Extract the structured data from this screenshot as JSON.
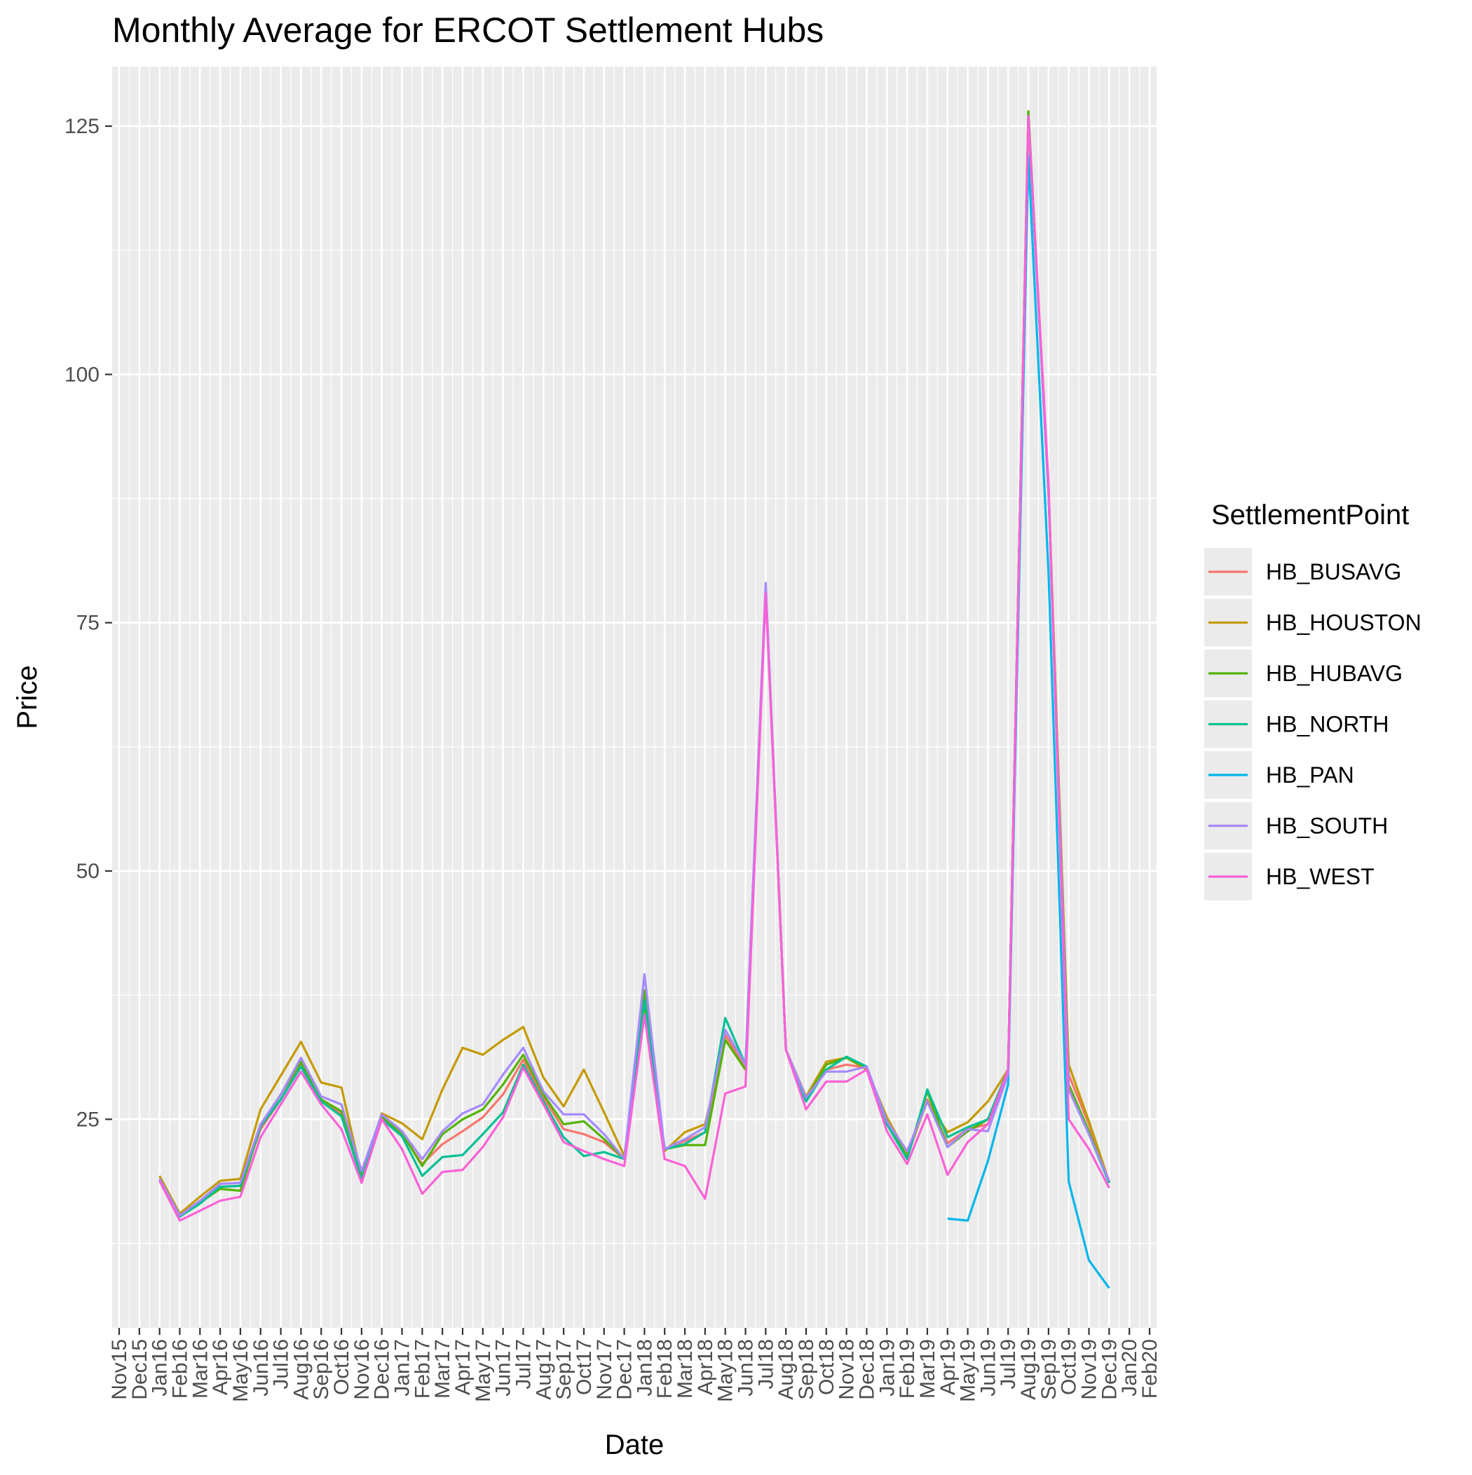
{
  "chart_data": {
    "type": "line",
    "title": "Monthly Average for ERCOT Settlement Hubs",
    "xlabel": "Date",
    "ylabel": "Price",
    "ylim": [
      4,
      131
    ],
    "y_ticks": [
      25,
      50,
      75,
      100,
      125
    ],
    "x_ticks": [
      "Nov15",
      "Dec15",
      "Jan16",
      "Feb16",
      "Mar16",
      "Apr16",
      "May16",
      "Jun16",
      "Jul16",
      "Aug16",
      "Sep16",
      "Oct16",
      "Nov16",
      "Dec16",
      "Jan17",
      "Feb17",
      "Mar17",
      "Apr17",
      "May17",
      "Jun17",
      "Jul17",
      "Aug17",
      "Sep17",
      "Oct17",
      "Nov17",
      "Dec17",
      "Jan18",
      "Feb18",
      "Mar18",
      "Apr18",
      "May18",
      "Jun18",
      "Jul18",
      "Aug18",
      "Sep18",
      "Oct18",
      "Nov18",
      "Dec18",
      "Jan19",
      "Feb19",
      "Mar19",
      "Apr19",
      "May19",
      "Jun19",
      "Jul19",
      "Aug19",
      "Sep19",
      "Oct19",
      "Nov19",
      "Dec19",
      "Jan20",
      "Feb20"
    ],
    "grid": true,
    "legend": {
      "title": "SettlementPoint",
      "position": "right"
    },
    "series": [
      {
        "name": "HB_BUSAVG",
        "color": "#F8766D",
        "x": [
          "Jan16",
          "Feb16",
          "Mar16",
          "Apr16",
          "May16",
          "Jun16",
          "Jul16",
          "Aug16",
          "Sep16",
          "Oct16",
          "Nov16",
          "Dec16",
          "Jan17",
          "Feb17",
          "Mar17",
          "Apr17",
          "May17",
          "Jun17",
          "Jul17",
          "Aug17",
          "Sep17",
          "Oct17",
          "Nov17",
          "Dec17",
          "Jan18",
          "Feb18",
          "Mar18",
          "Apr18",
          "May18",
          "Jun18",
          "Jul18",
          "Aug18",
          "Sep18",
          "Oct18",
          "Nov18",
          "Dec18",
          "Jan19",
          "Feb19",
          "Mar19",
          "Apr19",
          "May19",
          "Jun19",
          "Jul19",
          "Aug19",
          "Sep19",
          "Oct19",
          "Nov19",
          "Dec19"
        ],
        "values": [
          19.0,
          15.3,
          16.8,
          18.2,
          18.3,
          24.0,
          27.0,
          30.5,
          27.0,
          25.5,
          19.0,
          25.3,
          23.5,
          20.5,
          22.5,
          23.8,
          25.2,
          27.5,
          31.0,
          27.2,
          24.0,
          23.5,
          22.7,
          21.0,
          37.5,
          22.0,
          22.8,
          23.7,
          33.5,
          30.2,
          78.5,
          32.0,
          27.0,
          30.0,
          30.5,
          30.2,
          24.5,
          21.2,
          27.0,
          22.6,
          24.0,
          24.5,
          30.0,
          126.0,
          88.0,
          29.5,
          24.5,
          18.6
        ]
      },
      {
        "name": "HB_HOUSTON",
        "color": "#C49A00",
        "x": [
          "Jan16",
          "Feb16",
          "Mar16",
          "Apr16",
          "May16",
          "Jun16",
          "Jul16",
          "Aug16",
          "Sep16",
          "Oct16",
          "Nov16",
          "Dec16",
          "Jan17",
          "Feb17",
          "Mar17",
          "Apr17",
          "May17",
          "Jun17",
          "Jul17",
          "Aug17",
          "Sep17",
          "Oct17",
          "Nov17",
          "Dec17",
          "Jan18",
          "Feb18",
          "Mar18",
          "Apr18",
          "May18",
          "Jun18",
          "Jul18",
          "Aug18",
          "Sep18",
          "Oct18",
          "Nov18",
          "Dec18",
          "Jan19",
          "Feb19",
          "Mar19",
          "Apr19",
          "May19",
          "Jun19",
          "Jul19",
          "Aug19",
          "Sep19",
          "Oct19",
          "Nov19",
          "Dec19"
        ],
        "values": [
          19.3,
          15.5,
          17.2,
          18.8,
          19.0,
          26.0,
          29.4,
          32.8,
          28.7,
          28.2,
          19.3,
          25.6,
          24.6,
          23.0,
          28.0,
          32.2,
          31.5,
          33.0,
          34.3,
          29.2,
          26.3,
          30.0,
          25.7,
          21.3,
          36.0,
          21.8,
          23.7,
          24.5,
          33.0,
          30.0,
          78.5,
          32.0,
          27.3,
          30.8,
          31.2,
          30.0,
          25.2,
          21.5,
          26.8,
          23.7,
          24.7,
          26.8,
          30.0,
          126.0,
          88.5,
          30.5,
          24.8,
          18.7
        ]
      },
      {
        "name": "HB_HUBAVG",
        "color": "#53B400",
        "x": [
          "Jan16",
          "Feb16",
          "Mar16",
          "Apr16",
          "May16",
          "Jun16",
          "Jul16",
          "Aug16",
          "Sep16",
          "Oct16",
          "Nov16",
          "Dec16",
          "Jan17",
          "Feb17",
          "Mar17",
          "Apr17",
          "May17",
          "Jun17",
          "Jul17",
          "Aug17",
          "Sep17",
          "Oct17",
          "Nov17",
          "Dec17",
          "Jan18",
          "Feb18",
          "Mar18",
          "Apr18",
          "May18",
          "Jun18",
          "Jul18",
          "Aug18",
          "Sep18",
          "Oct18",
          "Nov18",
          "Dec18",
          "Jan19",
          "Feb19",
          "Mar19",
          "Apr19",
          "May19",
          "Jun19",
          "Jul19",
          "Aug19",
          "Sep19",
          "Oct19",
          "Nov19",
          "Dec19"
        ],
        "values": [
          19.0,
          15.3,
          16.6,
          18.0,
          17.8,
          24.3,
          27.5,
          30.8,
          27.0,
          25.8,
          19.3,
          25.3,
          23.6,
          20.3,
          23.5,
          25.0,
          26.0,
          28.5,
          31.5,
          27.5,
          24.5,
          24.8,
          23.0,
          21.0,
          38.0,
          22.0,
          22.4,
          22.4,
          33.0,
          30.0,
          78.5,
          32.0,
          27.0,
          30.5,
          31.2,
          30.2,
          24.8,
          21.2,
          27.8,
          22.2,
          23.8,
          25.0,
          30.0,
          126.5,
          88.0,
          28.5,
          23.8,
          18.6
        ]
      },
      {
        "name": "HB_NORTH",
        "color": "#00C094",
        "x": [
          "Jan16",
          "Feb16",
          "Mar16",
          "Apr16",
          "May16",
          "Jun16",
          "Jul16",
          "Aug16",
          "Sep16",
          "Oct16",
          "Nov16",
          "Dec16",
          "Jan17",
          "Feb17",
          "Mar17",
          "Apr17",
          "May17",
          "Jun17",
          "Jul17",
          "Aug17",
          "Sep17",
          "Oct17",
          "Nov17",
          "Dec17",
          "Jan18",
          "Feb18",
          "Mar18",
          "Apr18",
          "May18",
          "Jun18",
          "Jul18",
          "Aug18",
          "Sep18",
          "Oct18",
          "Nov18",
          "Dec18",
          "Jan19",
          "Feb19",
          "Mar19",
          "Apr19",
          "May19",
          "Jun19",
          "Jul19",
          "Aug19",
          "Sep19",
          "Oct19",
          "Nov19",
          "Dec19"
        ],
        "values": [
          19.0,
          15.2,
          16.5,
          18.2,
          18.3,
          24.3,
          27.0,
          30.3,
          26.8,
          25.3,
          19.0,
          25.0,
          23.3,
          19.3,
          21.2,
          21.4,
          23.5,
          25.7,
          30.5,
          26.8,
          23.2,
          21.3,
          21.7,
          21.0,
          37.0,
          22.0,
          22.5,
          23.7,
          35.2,
          30.5,
          78.5,
          32.0,
          26.8,
          30.0,
          31.3,
          30.3,
          24.5,
          21.0,
          28.0,
          23.2,
          24.2,
          25.0,
          30.0,
          126.0,
          88.0,
          28.0,
          23.5,
          18.6
        ]
      },
      {
        "name": "HB_PAN",
        "color": "#00B6EB",
        "x": [
          "Apr19",
          "May19",
          "Jun19",
          "Jul19",
          "Aug19",
          "Sep19",
          "Oct19",
          "Nov19",
          "Dec19"
        ],
        "values": [
          15.0,
          14.8,
          20.8,
          28.5,
          122.0,
          80.0,
          18.7,
          10.8,
          8.0
        ]
      },
      {
        "name": "HB_SOUTH",
        "color": "#A58AFF",
        "x": [
          "Jan16",
          "Feb16",
          "Mar16",
          "Apr16",
          "May16",
          "Jun16",
          "Jul16",
          "Aug16",
          "Sep16",
          "Oct16",
          "Nov16",
          "Dec16",
          "Jan17",
          "Feb17",
          "Mar17",
          "Apr17",
          "May17",
          "Jun17",
          "Jul17",
          "Aug17",
          "Sep17",
          "Oct17",
          "Nov17",
          "Dec17",
          "Jan18",
          "Feb18",
          "Mar18",
          "Apr18",
          "May18",
          "Jun18",
          "Jul18",
          "Aug18",
          "Sep18",
          "Oct18",
          "Nov18",
          "Dec18",
          "Jan19",
          "Feb19",
          "Mar19",
          "Apr19",
          "May19",
          "Jun19",
          "Jul19",
          "Aug19",
          "Sep19",
          "Oct19",
          "Nov19",
          "Dec19"
        ],
        "values": [
          19.0,
          15.3,
          16.8,
          18.5,
          18.6,
          24.5,
          27.5,
          31.2,
          27.3,
          26.5,
          19.8,
          25.5,
          23.8,
          21.0,
          23.8,
          25.6,
          26.5,
          29.5,
          32.2,
          27.8,
          25.5,
          25.5,
          23.5,
          21.0,
          39.6,
          22.0,
          23.0,
          24.2,
          34.0,
          30.5,
          79.0,
          32.0,
          27.2,
          29.8,
          29.8,
          30.3,
          24.8,
          21.8,
          26.8,
          22.2,
          24.0,
          23.8,
          29.5,
          126.0,
          88.0,
          28.0,
          23.5,
          18.8
        ]
      },
      {
        "name": "HB_WEST",
        "color": "#FB61D7",
        "x": [
          "Jan16",
          "Feb16",
          "Mar16",
          "Apr16",
          "May16",
          "Jun16",
          "Jul16",
          "Aug16",
          "Sep16",
          "Oct16",
          "Nov16",
          "Dec16",
          "Jan17",
          "Feb17",
          "Mar17",
          "Apr17",
          "May17",
          "Jun17",
          "Jul17",
          "Aug17",
          "Sep17",
          "Oct17",
          "Nov17",
          "Dec17",
          "Jan18",
          "Feb18",
          "Mar18",
          "Apr18",
          "May18",
          "Jun18",
          "Jul18",
          "Aug18",
          "Sep18",
          "Oct18",
          "Nov18",
          "Dec18",
          "Jan19",
          "Feb19",
          "Mar19",
          "Apr19",
          "May19",
          "Jun19",
          "Jul19",
          "Aug19",
          "Sep19",
          "Oct19",
          "Nov19",
          "Dec19"
        ],
        "values": [
          18.8,
          14.8,
          15.8,
          16.8,
          17.2,
          23.2,
          26.5,
          29.8,
          26.5,
          24.0,
          18.6,
          25.0,
          22.0,
          17.5,
          19.7,
          19.9,
          22.2,
          25.2,
          30.2,
          26.5,
          22.7,
          21.8,
          21.0,
          20.3,
          35.5,
          21.0,
          20.3,
          17.0,
          27.6,
          28.3,
          78.0,
          32.0,
          26.0,
          28.8,
          28.8,
          30.0,
          23.8,
          20.5,
          25.5,
          19.4,
          22.7,
          24.5,
          30.0,
          126.0,
          89.0,
          25.0,
          22.0,
          18.1
        ]
      }
    ]
  }
}
